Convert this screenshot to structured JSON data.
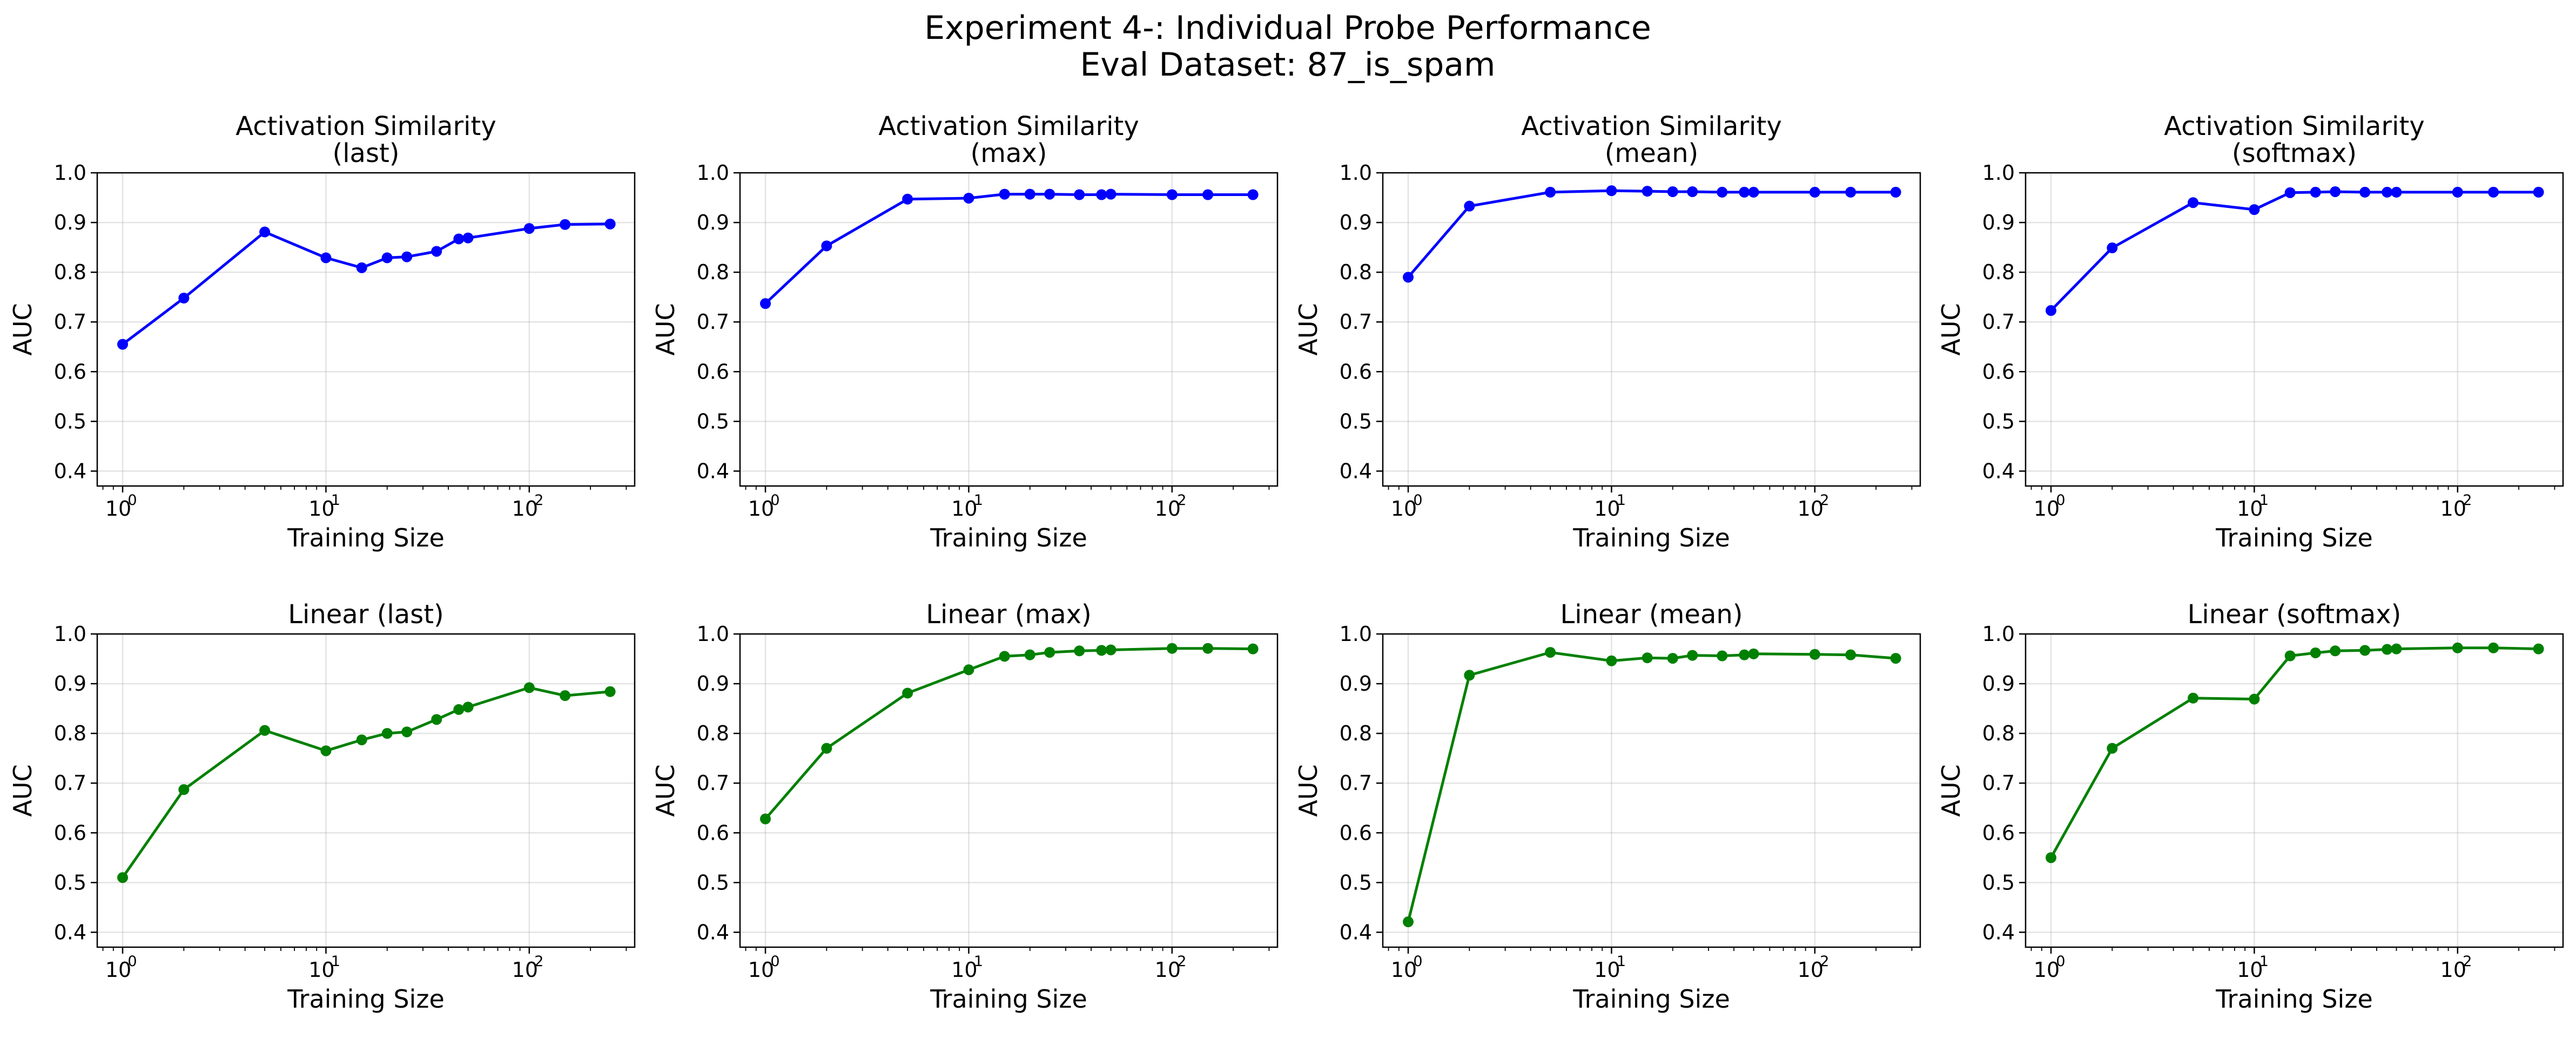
{
  "figure": {
    "suptitle_line1": "Experiment 4-: Individual Probe Performance",
    "suptitle_line2": "Eval Dataset: 87_is_spam"
  },
  "chart_data": [
    {
      "type": "line",
      "title_line1": "Activation Similarity",
      "title_line2": "(last)",
      "xlabel": "Training Size",
      "ylabel": "AUC",
      "xscale": "log",
      "xlim": [
        0.75,
        330
      ],
      "ylim": [
        0.37,
        1.0
      ],
      "yticks": [
        0.4,
        0.5,
        0.6,
        0.7,
        0.8,
        0.9,
        1.0
      ],
      "color": "#0000ff",
      "grid": true,
      "x": [
        1,
        2,
        5,
        10,
        15,
        20,
        25,
        35,
        45,
        50,
        100,
        150,
        250
      ],
      "y": [
        0.655,
        0.748,
        0.881,
        0.829,
        0.809,
        0.829,
        0.831,
        0.842,
        0.867,
        0.869,
        0.888,
        0.896,
        0.897
      ]
    },
    {
      "type": "line",
      "title_line1": "Activation Similarity",
      "title_line2": "(max)",
      "xlabel": "Training Size",
      "ylabel": "AUC",
      "xscale": "log",
      "xlim": [
        0.75,
        330
      ],
      "ylim": [
        0.37,
        1.0
      ],
      "yticks": [
        0.4,
        0.5,
        0.6,
        0.7,
        0.8,
        0.9,
        1.0
      ],
      "color": "#0000ff",
      "grid": true,
      "x": [
        1,
        2,
        5,
        10,
        15,
        20,
        25,
        35,
        45,
        50,
        100,
        150,
        250
      ],
      "y": [
        0.737,
        0.853,
        0.947,
        0.949,
        0.957,
        0.957,
        0.957,
        0.956,
        0.956,
        0.957,
        0.956,
        0.956,
        0.956
      ]
    },
    {
      "type": "line",
      "title_line1": "Activation Similarity",
      "title_line2": "(mean)",
      "xlabel": "Training Size",
      "ylabel": "AUC",
      "xscale": "log",
      "xlim": [
        0.75,
        330
      ],
      "ylim": [
        0.37,
        1.0
      ],
      "yticks": [
        0.4,
        0.5,
        0.6,
        0.7,
        0.8,
        0.9,
        1.0
      ],
      "color": "#0000ff",
      "grid": true,
      "x": [
        1,
        2,
        5,
        10,
        15,
        20,
        25,
        35,
        45,
        50,
        100,
        150,
        250
      ],
      "y": [
        0.79,
        0.933,
        0.961,
        0.964,
        0.963,
        0.962,
        0.962,
        0.961,
        0.961,
        0.961,
        0.961,
        0.961,
        0.961
      ]
    },
    {
      "type": "line",
      "title_line1": "Activation Similarity",
      "title_line2": "(softmax)",
      "xlabel": "Training Size",
      "ylabel": "AUC",
      "xscale": "log",
      "xlim": [
        0.75,
        330
      ],
      "ylim": [
        0.37,
        1.0
      ],
      "yticks": [
        0.4,
        0.5,
        0.6,
        0.7,
        0.8,
        0.9,
        1.0
      ],
      "color": "#0000ff",
      "grid": true,
      "x": [
        1,
        2,
        5,
        10,
        15,
        20,
        25,
        35,
        45,
        50,
        100,
        150,
        250
      ],
      "y": [
        0.723,
        0.849,
        0.94,
        0.926,
        0.96,
        0.961,
        0.962,
        0.961,
        0.961,
        0.961,
        0.961,
        0.961,
        0.961
      ]
    },
    {
      "type": "line",
      "title_line1": "Linear (last)",
      "title_line2": "",
      "xlabel": "Training Size",
      "ylabel": "AUC",
      "xscale": "log",
      "xlim": [
        0.75,
        330
      ],
      "ylim": [
        0.37,
        1.0
      ],
      "yticks": [
        0.4,
        0.5,
        0.6,
        0.7,
        0.8,
        0.9,
        1.0
      ],
      "color": "#008000",
      "grid": true,
      "x": [
        1,
        2,
        5,
        10,
        15,
        20,
        25,
        35,
        45,
        50,
        100,
        150,
        250
      ],
      "y": [
        0.51,
        0.687,
        0.806,
        0.765,
        0.787,
        0.8,
        0.803,
        0.828,
        0.848,
        0.853,
        0.892,
        0.876,
        0.884
      ]
    },
    {
      "type": "line",
      "title_line1": "Linear (max)",
      "title_line2": "",
      "xlabel": "Training Size",
      "ylabel": "AUC",
      "xscale": "log",
      "xlim": [
        0.75,
        330
      ],
      "ylim": [
        0.37,
        1.0
      ],
      "yticks": [
        0.4,
        0.5,
        0.6,
        0.7,
        0.8,
        0.9,
        1.0
      ],
      "color": "#008000",
      "grid": true,
      "x": [
        1,
        2,
        5,
        10,
        15,
        20,
        25,
        35,
        45,
        50,
        100,
        150,
        250
      ],
      "y": [
        0.628,
        0.77,
        0.881,
        0.928,
        0.955,
        0.958,
        0.963,
        0.966,
        0.967,
        0.968,
        0.971,
        0.971,
        0.97
      ]
    },
    {
      "type": "line",
      "title_line1": "Linear (mean)",
      "title_line2": "",
      "xlabel": "Training Size",
      "ylabel": "AUC",
      "xscale": "log",
      "xlim": [
        0.75,
        330
      ],
      "ylim": [
        0.37,
        1.0
      ],
      "yticks": [
        0.4,
        0.5,
        0.6,
        0.7,
        0.8,
        0.9,
        1.0
      ],
      "color": "#008000",
      "grid": true,
      "x": [
        1,
        2,
        5,
        10,
        15,
        20,
        25,
        35,
        45,
        50,
        100,
        150,
        250
      ],
      "y": [
        0.421,
        0.917,
        0.963,
        0.946,
        0.952,
        0.951,
        0.957,
        0.956,
        0.958,
        0.96,
        0.959,
        0.958,
        0.951
      ]
    },
    {
      "type": "line",
      "title_line1": "Linear (softmax)",
      "title_line2": "",
      "xlabel": "Training Size",
      "ylabel": "AUC",
      "xscale": "log",
      "xlim": [
        0.75,
        330
      ],
      "ylim": [
        0.37,
        1.0
      ],
      "yticks": [
        0.4,
        0.5,
        0.6,
        0.7,
        0.8,
        0.9,
        1.0
      ],
      "color": "#008000",
      "grid": true,
      "x": [
        1,
        2,
        5,
        10,
        15,
        20,
        25,
        35,
        45,
        50,
        100,
        150,
        250
      ],
      "y": [
        0.55,
        0.77,
        0.871,
        0.869,
        0.956,
        0.962,
        0.966,
        0.967,
        0.969,
        0.97,
        0.972,
        0.972,
        0.97
      ]
    }
  ]
}
